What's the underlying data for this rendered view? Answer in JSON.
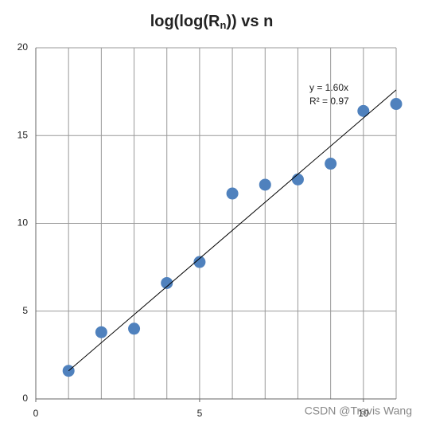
{
  "chart_data": {
    "type": "scatter",
    "title_parts": [
      "log(log(R",
      "n",
      ")) vs n"
    ],
    "x": [
      1,
      2,
      3,
      4,
      5,
      6,
      7,
      8,
      9,
      10,
      11
    ],
    "series": [
      {
        "color": "#4f81bd",
        "values": [
          1.6,
          3.8,
          4.0,
          6.6,
          7.8,
          11.7,
          12.2,
          12.5,
          13.4,
          16.4,
          16.8
        ]
      }
    ],
    "xlim": [
      0,
      11
    ],
    "xticks": [
      0,
      5,
      10
    ],
    "x_grid_step": 1,
    "ylim": [
      0,
      20
    ],
    "yticks": [
      0,
      5,
      10,
      15,
      20
    ],
    "grid": true,
    "trendline": {
      "slope": 1.6,
      "equation": "y = 1.60x",
      "r_squared": "R² = 0.97"
    },
    "watermark": "CSDN @Travis Wang"
  }
}
